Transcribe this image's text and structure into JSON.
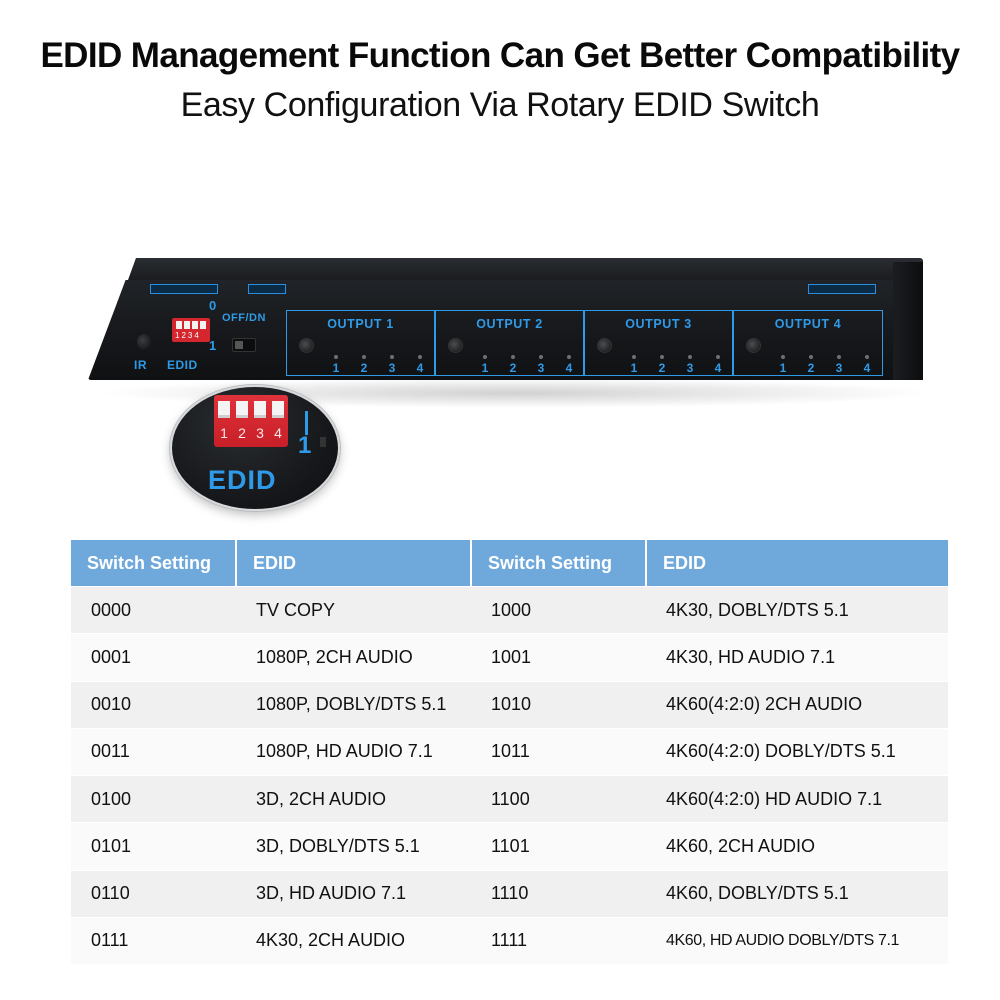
{
  "heading": {
    "title": "EDID Management Function Can Get Better Compatibility",
    "subtitle": "Easy Configuration Via Rotary EDID Switch"
  },
  "device": {
    "ir_label": "IR",
    "edid_label": "EDID",
    "dip_numbers": "1234",
    "switch_off_label": "0",
    "switch_on_label": "1",
    "mode_label": "OFF/DN",
    "outputs": [
      {
        "label": "OUTPUT 1",
        "ports": [
          "1",
          "2",
          "3",
          "4"
        ]
      },
      {
        "label": "OUTPUT 2",
        "ports": [
          "1",
          "2",
          "3",
          "4"
        ]
      },
      {
        "label": "OUTPUT 3",
        "ports": [
          "1",
          "2",
          "3",
          "4"
        ]
      },
      {
        "label": "OUTPUT 4",
        "ports": [
          "1",
          "2",
          "3",
          "4"
        ]
      }
    ]
  },
  "zoom": {
    "digits": [
      "1",
      "2",
      "3",
      "4"
    ],
    "on_label": "1",
    "edid_label": "EDID"
  },
  "table": {
    "headers": [
      "Switch Setting",
      "EDID",
      "Switch Setting",
      "EDID"
    ],
    "rows": [
      [
        "0000",
        "TV COPY",
        "1000",
        "4K30, DOBLY/DTS 5.1"
      ],
      [
        "0001",
        "1080P, 2CH AUDIO",
        "1001",
        "4K30, HD AUDIO 7.1"
      ],
      [
        "0010",
        "1080P, DOBLY/DTS 5.1",
        "1010",
        "4K60(4:2:0) 2CH AUDIO"
      ],
      [
        "0011",
        "1080P, HD AUDIO 7.1",
        "1011",
        "4K60(4:2:0) DOBLY/DTS 5.1"
      ],
      [
        "0100",
        "3D, 2CH AUDIO",
        "1100",
        "4K60(4:2:0) HD AUDIO 7.1"
      ],
      [
        "0101",
        "3D, DOBLY/DTS 5.1",
        "1101",
        "4K60, 2CH AUDIO"
      ],
      [
        "0110",
        "3D, HD AUDIO 7.1",
        "1110",
        "4K60, DOBLY/DTS 5.1"
      ],
      [
        "0111",
        "4K30, 2CH AUDIO",
        "1111",
        "4K60, HD AUDIO DOBLY/DTS 7.1"
      ]
    ]
  },
  "colors": {
    "accent_blue": "#2f9be8",
    "table_header": "#6fa9dc",
    "dip_red": "#d3262f",
    "device_body": "#16181b"
  }
}
